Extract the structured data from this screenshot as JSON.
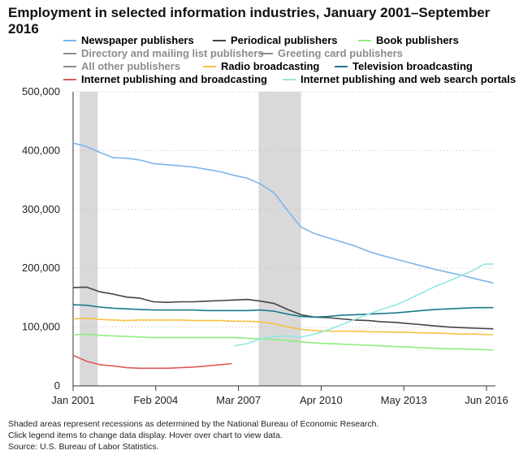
{
  "chart_data": {
    "type": "line",
    "title": "Employment in selected information industries, January 2001–September 2016",
    "xlabel": "",
    "ylabel": "",
    "ylim": [
      0,
      500000
    ],
    "yticks": [
      0,
      100000,
      200000,
      300000,
      400000,
      500000
    ],
    "ytick_labels": [
      "0",
      "100,000",
      "200,000",
      "300,000",
      "400,000",
      "500,000"
    ],
    "xlim": [
      2001.0,
      2016.75
    ],
    "xticks": [
      2001.0,
      2004.083,
      2007.167,
      2010.25,
      2013.333,
      2016.417
    ],
    "xtick_labels": [
      "Jan 2001",
      "Feb 2004",
      "Mar 2007",
      "Apr 2010",
      "May 2013",
      "Jun 2016"
    ],
    "grid": "horizontal dotted",
    "legend_position": "top",
    "recessions": [
      {
        "start": 2001.25,
        "end": 2001.917
      },
      {
        "start": 2007.917,
        "end": 2009.5
      }
    ],
    "series": [
      {
        "name": "Newspaper publishers",
        "color": "#7cb5ec",
        "visible": true,
        "x": [
          2001.0,
          2001.5,
          2002.0,
          2002.5,
          2003.0,
          2003.5,
          2004.0,
          2004.5,
          2005.0,
          2005.5,
          2006.0,
          2006.5,
          2007.0,
          2007.5,
          2008.0,
          2008.5,
          2009.0,
          2009.5,
          2010.0,
          2010.5,
          2011.0,
          2011.5,
          2012.0,
          2012.5,
          2013.0,
          2013.5,
          2014.0,
          2014.5,
          2015.0,
          2015.5,
          2016.0,
          2016.67
        ],
        "values": [
          413000,
          407000,
          397000,
          388000,
          387000,
          384000,
          378000,
          376000,
          374000,
          372000,
          368000,
          364000,
          358000,
          353000,
          343000,
          328000,
          298000,
          270000,
          259000,
          252000,
          245000,
          238000,
          229000,
          222000,
          216000,
          210000,
          204000,
          198000,
          193000,
          188000,
          182000,
          175000
        ]
      },
      {
        "name": "Periodical publishers",
        "color": "#434348",
        "visible": true,
        "x": [
          2001.0,
          2001.5,
          2002.0,
          2002.5,
          2003.0,
          2003.5,
          2004.0,
          2004.5,
          2005.0,
          2005.5,
          2006.0,
          2006.5,
          2007.0,
          2007.5,
          2008.0,
          2008.5,
          2009.0,
          2009.5,
          2010.0,
          2010.5,
          2011.0,
          2011.5,
          2012.0,
          2012.5,
          2013.0,
          2013.5,
          2014.0,
          2014.5,
          2015.0,
          2015.5,
          2016.0,
          2016.67
        ],
        "values": [
          167000,
          168000,
          160000,
          156000,
          151000,
          149000,
          143000,
          142000,
          143000,
          143000,
          144000,
          145000,
          146000,
          147000,
          144000,
          140000,
          130000,
          121000,
          117000,
          116000,
          114000,
          112000,
          111000,
          109000,
          108000,
          106000,
          104000,
          102000,
          100000,
          99000,
          98000,
          97000
        ]
      },
      {
        "name": "Book publishers",
        "color": "#90ed7d",
        "visible": true,
        "x": [
          2001.0,
          2001.5,
          2002.0,
          2002.5,
          2003.0,
          2003.5,
          2004.0,
          2004.5,
          2005.0,
          2005.5,
          2006.0,
          2006.5,
          2007.0,
          2007.5,
          2008.0,
          2008.5,
          2009.0,
          2009.5,
          2010.0,
          2010.5,
          2011.0,
          2011.5,
          2012.0,
          2012.5,
          2013.0,
          2013.5,
          2014.0,
          2014.5,
          2015.0,
          2015.5,
          2016.0,
          2016.67
        ],
        "values": [
          87000,
          88000,
          86000,
          85000,
          84000,
          83000,
          82000,
          82000,
          82000,
          82000,
          82000,
          82000,
          82000,
          81000,
          80000,
          79000,
          77000,
          75000,
          73000,
          72000,
          71000,
          70000,
          69000,
          68000,
          67000,
          66000,
          65000,
          64000,
          63000,
          63000,
          62000,
          61000
        ]
      },
      {
        "name": "Directory and mailing list publishers",
        "color": "#8c8c8c",
        "visible": false,
        "x": [],
        "values": []
      },
      {
        "name": "Greeting card publishers",
        "color": "#8c8c8c",
        "visible": false,
        "x": [],
        "values": []
      },
      {
        "name": "All other publishers",
        "color": "#8c8c8c",
        "visible": false,
        "x": [],
        "values": []
      },
      {
        "name": "Radio broadcasting",
        "color": "#f7c142",
        "visible": true,
        "x": [
          2001.0,
          2001.5,
          2002.0,
          2002.5,
          2003.0,
          2003.5,
          2004.0,
          2004.5,
          2005.0,
          2005.5,
          2006.0,
          2006.5,
          2007.0,
          2007.5,
          2008.0,
          2008.5,
          2009.0,
          2009.5,
          2010.0,
          2010.5,
          2011.0,
          2011.5,
          2012.0,
          2012.5,
          2013.0,
          2013.5,
          2014.0,
          2014.5,
          2015.0,
          2015.5,
          2016.0,
          2016.67
        ],
        "values": [
          114000,
          115000,
          113000,
          112000,
          111000,
          112000,
          112000,
          112000,
          112000,
          111000,
          111000,
          111000,
          110000,
          110000,
          109000,
          106000,
          100000,
          96000,
          94000,
          93000,
          93000,
          93000,
          92000,
          92000,
          91000,
          91000,
          90000,
          90000,
          89000,
          88000,
          88000,
          87000
        ]
      },
      {
        "name": "Television broadcasting",
        "color": "#1b7a8a",
        "visible": true,
        "x": [
          2001.0,
          2001.5,
          2002.0,
          2002.5,
          2003.0,
          2003.5,
          2004.0,
          2004.5,
          2005.0,
          2005.5,
          2006.0,
          2006.5,
          2007.0,
          2007.5,
          2008.0,
          2008.5,
          2009.0,
          2009.5,
          2010.0,
          2010.5,
          2011.0,
          2011.5,
          2012.0,
          2012.5,
          2013.0,
          2013.5,
          2014.0,
          2014.5,
          2015.0,
          2015.5,
          2016.0,
          2016.67
        ],
        "values": [
          138000,
          137000,
          134000,
          132000,
          131000,
          130000,
          129000,
          129000,
          129000,
          129000,
          128000,
          128000,
          128000,
          128000,
          129000,
          127000,
          122000,
          118000,
          117000,
          118000,
          120000,
          121000,
          122000,
          123000,
          124000,
          126000,
          128000,
          130000,
          131000,
          132000,
          133000,
          133000
        ]
      },
      {
        "name": "Internet publishing and broadcasting",
        "color": "#e05a5a",
        "visible": true,
        "x": [
          2001.0,
          2001.25,
          2001.5,
          2001.75,
          2002.0,
          2002.5,
          2003.0,
          2003.5,
          2004.0,
          2004.5,
          2005.0,
          2005.5,
          2006.0,
          2006.5,
          2006.92
        ],
        "values": [
          52000,
          47000,
          42000,
          39000,
          36000,
          34000,
          31000,
          30000,
          30000,
          30000,
          31000,
          32000,
          34000,
          36000,
          38000
        ]
      },
      {
        "name": "Internet publishing and web search portals",
        "color": "#91e8e1",
        "visible": true,
        "x": [
          2007.0,
          2007.5,
          2008.0,
          2008.5,
          2009.0,
          2009.5,
          2010.0,
          2010.5,
          2011.0,
          2011.5,
          2012.0,
          2012.5,
          2013.0,
          2013.5,
          2014.0,
          2014.5,
          2015.0,
          2015.5,
          2016.0,
          2016.33,
          2016.67
        ],
        "values": [
          68000,
          72000,
          80000,
          84000,
          85000,
          83000,
          88000,
          95000,
          104000,
          113000,
          122000,
          130000,
          137000,
          147000,
          158000,
          169000,
          178000,
          188000,
          198000,
          207000,
          207000
        ]
      }
    ]
  },
  "footnotes": {
    "line1": "Shaded areas represent recessions as determined by the National Bureau of Economic Research.",
    "line2": "Click legend items to change data display. Hover over chart to view data.",
    "line3": "Source: U.S. Bureau of Labor Statistics."
  }
}
